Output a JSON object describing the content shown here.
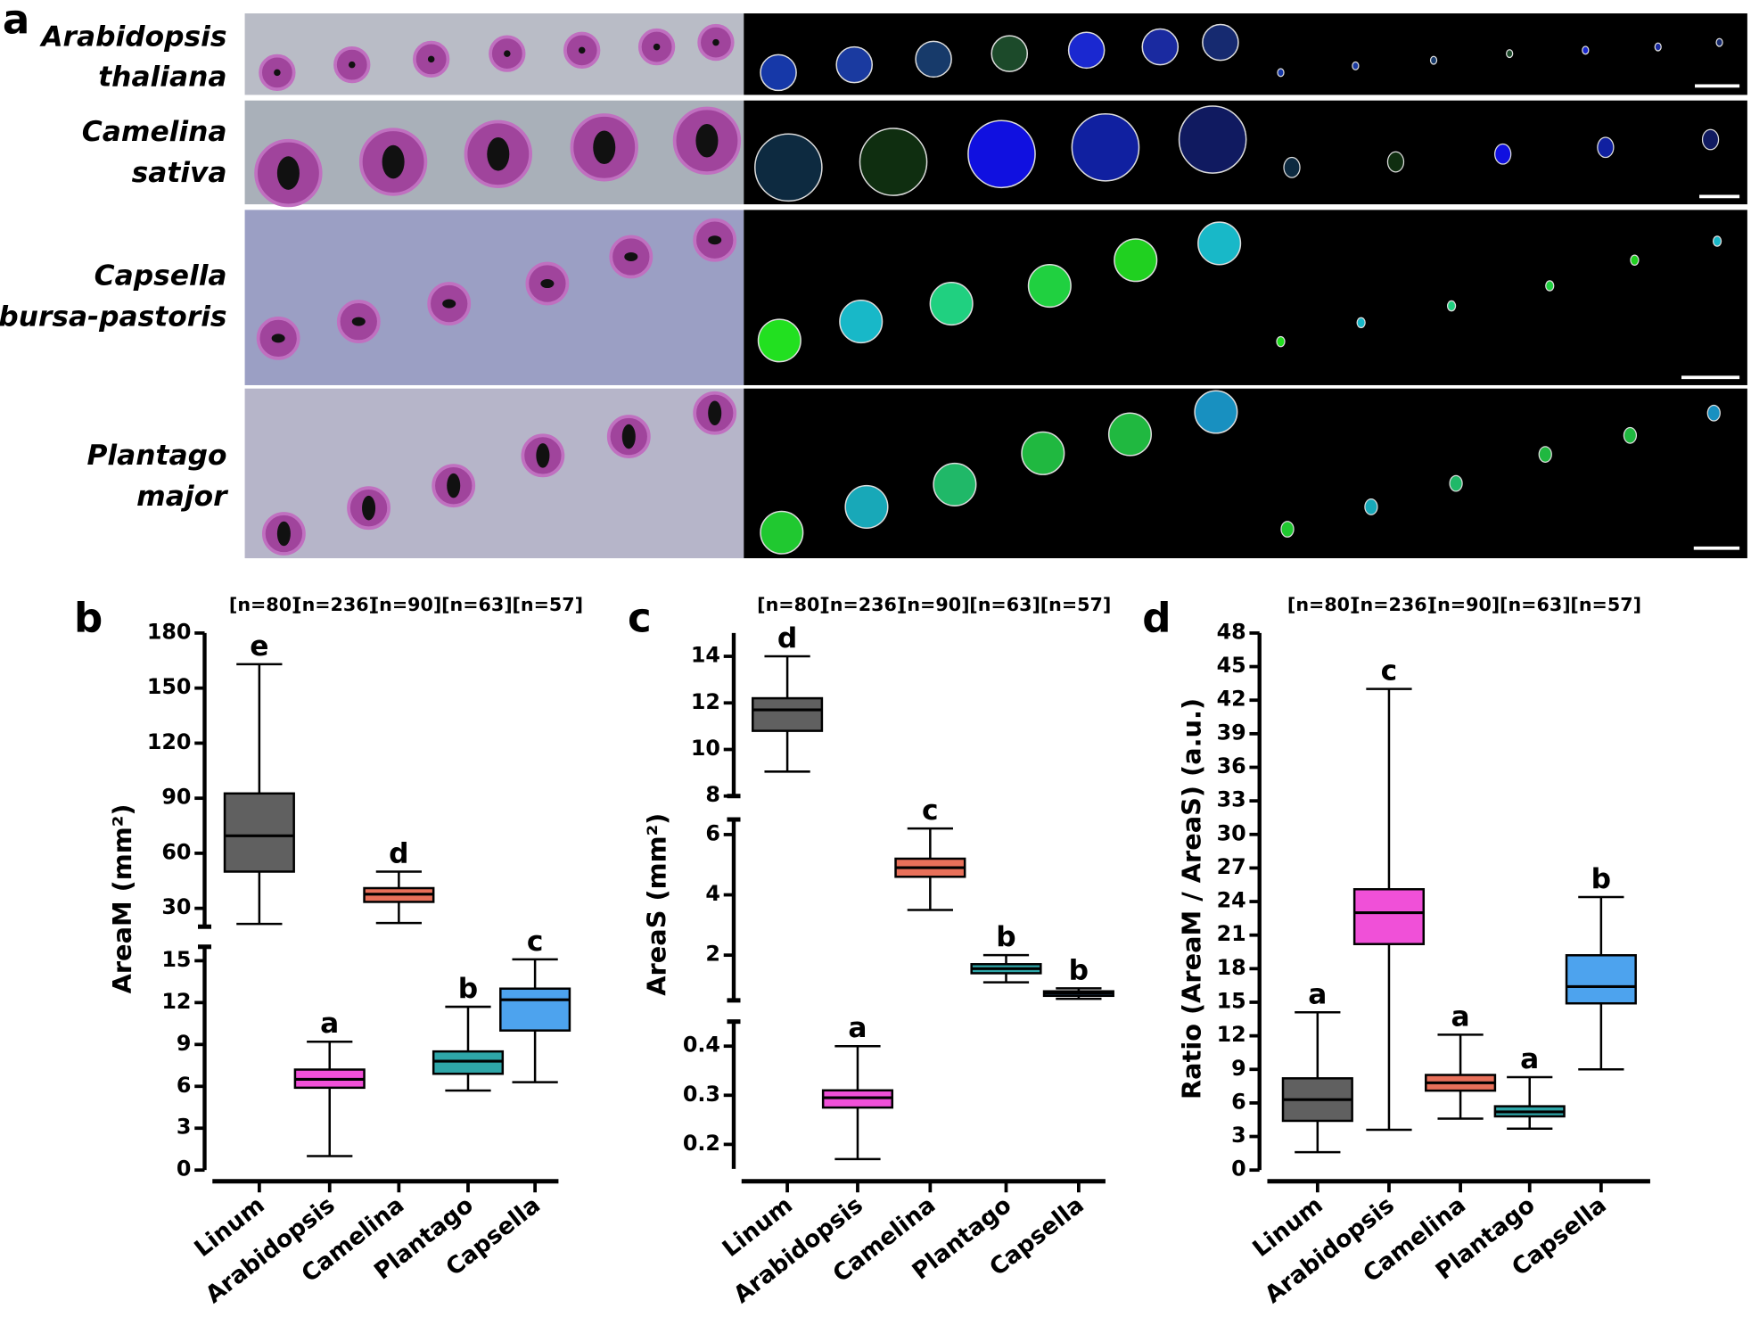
{
  "panel_a": {
    "label": "a",
    "rows": [
      {
        "lines": [
          "Arabidopsis",
          "thaliana"
        ]
      },
      {
        "lines": [
          "Camelina",
          "sativa"
        ]
      },
      {
        "lines": [
          "Capsella",
          "bursa-pastoris"
        ]
      },
      {
        "lines": [
          "Plantago",
          "major"
        ]
      }
    ]
  },
  "chart_data": [
    {
      "type": "box",
      "panel": "b",
      "y_label": "AreaM (mm²)",
      "categories": [
        "Linum",
        "Arabidopsis",
        "Camelina",
        "Plantago",
        "Capsella"
      ],
      "colors": [
        "#606060",
        "#f050d8",
        "#e8705a",
        "#2ea6a8",
        "#4da3ee"
      ],
      "n_labels": [
        "[n=80]",
        "[n=236]",
        "[n=90]",
        "[n=63]",
        "[n=57]"
      ],
      "letters": [
        "e",
        "a",
        "d",
        "b",
        "c"
      ],
      "min": [
        21.5,
        1.0,
        22,
        5.7,
        6.3
      ],
      "q1": [
        50,
        5.9,
        33.5,
        6.9,
        10
      ],
      "median": [
        69.5,
        6.5,
        37.7,
        7.8,
        12.2
      ],
      "q3": [
        92.6,
        7.2,
        41,
        8.5,
        13
      ],
      "max": [
        163,
        9.2,
        50,
        11.7,
        15.1
      ],
      "y_segments": [
        {
          "ylim": [
            0,
            16
          ],
          "yticks": [
            0,
            3,
            6,
            9,
            12,
            15
          ]
        },
        {
          "ylim": [
            20,
            180
          ],
          "yticks": [
            30,
            60,
            90,
            120,
            150,
            180
          ]
        }
      ]
    },
    {
      "type": "box",
      "panel": "c",
      "y_label": "AreaS (mm²)",
      "categories": [
        "Linum",
        "Arabidopsis",
        "Camelina",
        "Plantago",
        "Capsella"
      ],
      "colors": [
        "#606060",
        "#f050d8",
        "#e8705a",
        "#2ea6a8",
        "#4da3ee"
      ],
      "n_labels": [
        "[n=80]",
        "[n=236]",
        "[n=90]",
        "[n=63]",
        "[n=57]"
      ],
      "letters": [
        "d",
        "a",
        "c",
        "b",
        "b"
      ],
      "min": [
        9.05,
        0.17,
        3.5,
        1.1,
        0.55
      ],
      "q1": [
        10.8,
        0.275,
        4.6,
        1.4,
        0.65
      ],
      "median": [
        11.7,
        0.295,
        4.9,
        1.55,
        0.74
      ],
      "q3": [
        12.2,
        0.31,
        5.2,
        1.7,
        0.8
      ],
      "max": [
        14,
        0.4,
        6.2,
        2.0,
        0.9
      ],
      "y_segments": [
        {
          "ylim": [
            0.15,
            0.45
          ],
          "yticks": [
            0.2,
            0.3,
            0.4
          ]
        },
        {
          "ylim": [
            0.5,
            6.5
          ],
          "yticks": [
            2,
            4,
            6
          ]
        },
        {
          "ylim": [
            8,
            15
          ],
          "yticks": [
            8,
            10,
            12,
            14
          ]
        }
      ]
    },
    {
      "type": "box",
      "panel": "d",
      "y_label": "Ratio (AreaM / AreaS) (a.u.)",
      "categories": [
        "Linum",
        "Arabidopsis",
        "Camelina",
        "Plantago",
        "Capsella"
      ],
      "colors": [
        "#606060",
        "#f050d8",
        "#e8705a",
        "#2ea6a8",
        "#4da3ee"
      ],
      "n_labels": [
        "[n=80]",
        "[n=236]",
        "[n=90]",
        "[n=63]",
        "[n=57]"
      ],
      "letters": [
        "a",
        "c",
        "a",
        "a",
        "b"
      ],
      "min": [
        1.6,
        3.6,
        4.6,
        3.7,
        9.0
      ],
      "q1": [
        4.4,
        20.2,
        7.1,
        4.8,
        14.9
      ],
      "median": [
        6.3,
        23,
        7.8,
        5.2,
        16.4
      ],
      "q3": [
        8.2,
        25.1,
        8.5,
        5.7,
        19.2
      ],
      "max": [
        14.1,
        43,
        12.1,
        8.3,
        24.4
      ],
      "ylim": [
        0,
        48
      ],
      "yticks": [
        0,
        3,
        6,
        9,
        12,
        15,
        18,
        21,
        24,
        27,
        30,
        33,
        36,
        39,
        42,
        45,
        48
      ]
    }
  ]
}
